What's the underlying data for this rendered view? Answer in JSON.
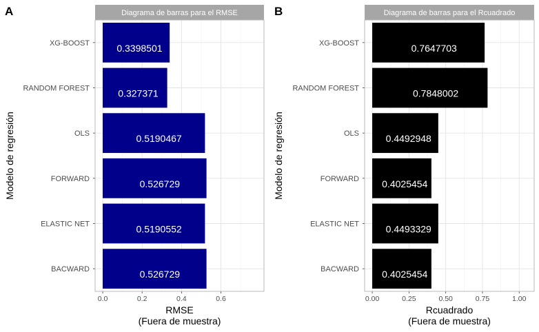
{
  "chart_data": [
    {
      "type": "bar",
      "orientation": "horizontal",
      "panel": "A",
      "title": "Diagrama de barras para el RMSE",
      "categories": [
        "XG-BOOST",
        "RANDOM FOREST",
        "OLS",
        "FORWARD",
        "ELASTIC NET",
        "BACWARD"
      ],
      "values": [
        0.3398501,
        0.327371,
        0.5190467,
        0.526729,
        0.5190552,
        0.526729
      ],
      "data_labels": [
        "0.3398501",
        "0.327371",
        "0.5190467",
        "0.526729",
        "0.5190552",
        "0.526729"
      ],
      "xlabel": "RMSE",
      "xlabel_sub": "(Fuera de muestra)",
      "ylabel": "Modelo de regresión",
      "xlim": [
        0,
        0.78
      ],
      "xticks": [
        0,
        0.2,
        0.4,
        0.6
      ],
      "xtick_labels": [
        "0.0",
        "0.2",
        "0.4",
        "0.6"
      ],
      "bar_color": "#00008b",
      "grid": true
    },
    {
      "type": "bar",
      "orientation": "horizontal",
      "panel": "B",
      "title": "Diagrama de barras para el Rcuadrado",
      "categories": [
        "XG-BOOST",
        "RANDOM FOREST",
        "OLS",
        "FORWARD",
        "ELASTIC NET",
        "BACWARD"
      ],
      "values": [
        0.7647703,
        0.7848002,
        0.4492948,
        0.4025454,
        0.4493329,
        0.4025454
      ],
      "data_labels": [
        "0.7647703",
        "0.7848002",
        "0.4492948",
        "0.4025454",
        "0.4493329",
        "0.4025454"
      ],
      "xlabel": "Rcuadrado",
      "xlabel_sub": "(Fuera de muestra)",
      "ylabel": "Modelo de regresión",
      "xlim": [
        0,
        1.05
      ],
      "xticks": [
        0,
        0.25,
        0.5,
        0.75,
        1
      ],
      "xtick_labels": [
        "0.00",
        "0.25",
        "0.50",
        "0.75",
        "1.00"
      ],
      "bar_color": "#000000",
      "grid": true
    }
  ],
  "strip_color": "#a6a6a6"
}
